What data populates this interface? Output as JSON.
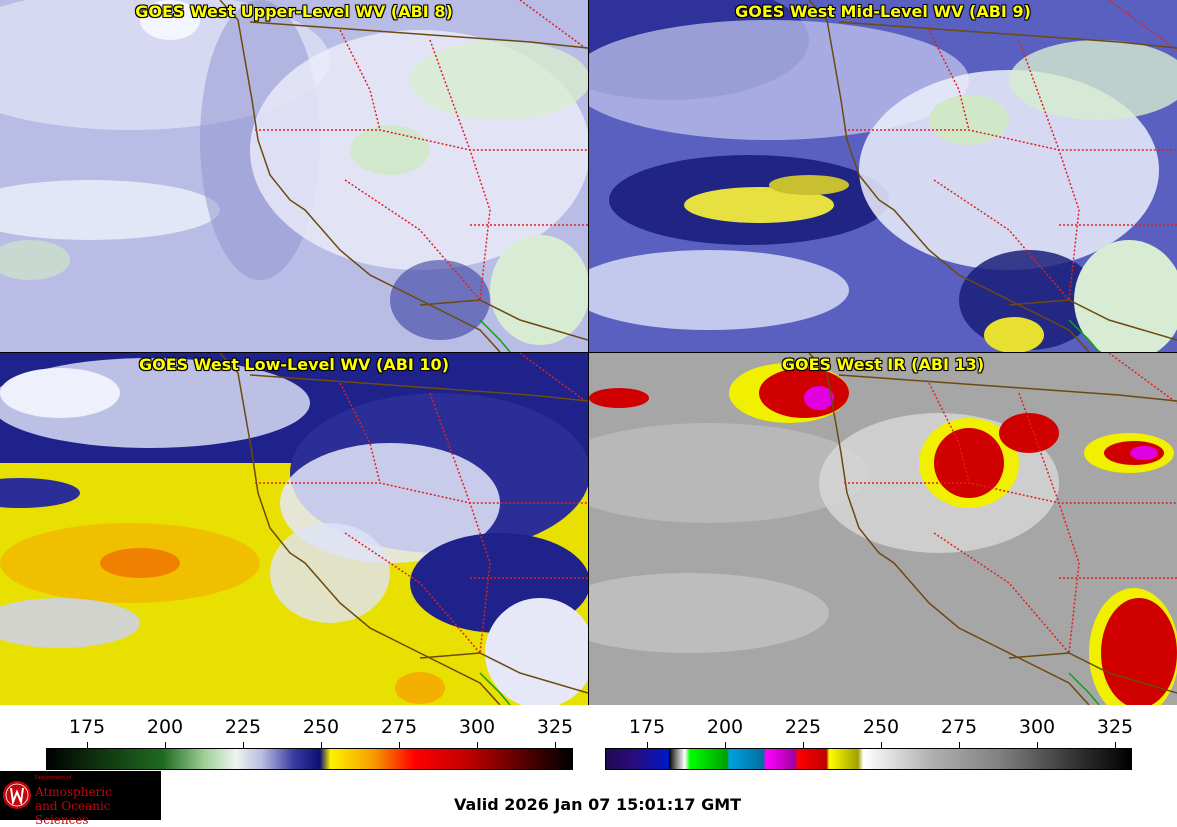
{
  "panels": [
    {
      "title": "GOES West Upper-Level WV (ABI 8)"
    },
    {
      "title": "GOES West Mid-Level WV (ABI 9)"
    },
    {
      "title": "GOES West Low-Level WV (ABI 10)"
    },
    {
      "title": "GOES West IR (ABI 13)"
    }
  ],
  "colorbars": [
    {
      "ticks": [
        "175",
        "200",
        "225",
        "250",
        "275",
        "300",
        "325"
      ]
    },
    {
      "ticks": [
        "175",
        "200",
        "225",
        "250",
        "275",
        "300",
        "325"
      ]
    }
  ],
  "logo": {
    "small": "Department of",
    "line1": "Atmospheric",
    "line2": "and Oceanic Sciences"
  },
  "valid_time": "Valid 2026 Jan 07 15:01:17 GMT",
  "colors": {
    "title_yellow": "#ffff00",
    "border_red": "#e02020",
    "coast_brown": "#6b4a10",
    "mexico_green": "#10a010"
  }
}
